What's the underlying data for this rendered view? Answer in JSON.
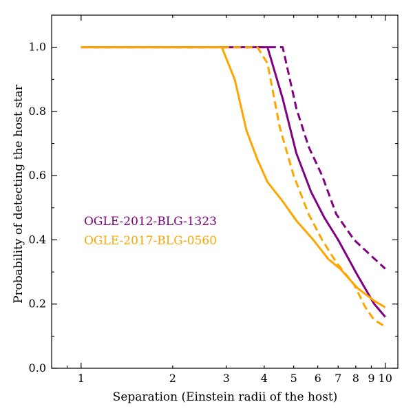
{
  "chart_data": {
    "type": "line",
    "title": "",
    "xlabel": "Separation (Einstein radii of the host)",
    "ylabel": "Probability of detecting the host star",
    "xscale": "log",
    "xlim": [
      0.8,
      11
    ],
    "ylim": [
      0.0,
      1.1
    ],
    "xticks": [
      1,
      2,
      3,
      4,
      5,
      6,
      7,
      8,
      9,
      10
    ],
    "xtick_labels": [
      "1",
      "2",
      "3",
      "4",
      "5",
      "6",
      "7",
      "8",
      "9",
      "10"
    ],
    "yticks": [
      0.0,
      0.2,
      0.4,
      0.6,
      0.8,
      1.0
    ],
    "ytick_labels": [
      "0.0",
      "0.2",
      "0.4",
      "0.6",
      "0.8",
      "1.0"
    ],
    "grid": false,
    "legend_placement": "middle-left",
    "series": [
      {
        "name": "OGLE-2012-BLG-1323",
        "style": "solid",
        "color": "#800080",
        "x": [
          1,
          2,
          3,
          3.5,
          4.1,
          4.6,
          5.1,
          5.7,
          6.3,
          7,
          8.1,
          9.2,
          10
        ],
        "y": [
          1.0,
          1.0,
          1.0,
          1.0,
          1.0,
          0.84,
          0.67,
          0.55,
          0.47,
          0.4,
          0.29,
          0.2,
          0.16
        ]
      },
      {
        "name": "OGLE-2012-BLG-1323",
        "style": "dashed",
        "color": "#800080",
        "x": [
          1,
          2,
          3,
          4,
          4.6,
          5.1,
          5.6,
          6.2,
          6.9,
          7.9,
          9,
          10
        ],
        "y": [
          1.0,
          1.0,
          1.0,
          1.0,
          1.0,
          0.81,
          0.69,
          0.6,
          0.48,
          0.4,
          0.35,
          0.31
        ]
      },
      {
        "name": "OGLE-2017-BLG-0560",
        "style": "solid",
        "color": "#FFA500",
        "x": [
          1,
          2,
          2.9,
          3.2,
          3.5,
          3.8,
          4.1,
          4.6,
          5.1,
          5.8,
          6.5,
          7.1,
          8.1,
          9.2,
          10
        ],
        "y": [
          1.0,
          1.0,
          1.0,
          0.9,
          0.74,
          0.65,
          0.58,
          0.52,
          0.46,
          0.4,
          0.34,
          0.31,
          0.25,
          0.21,
          0.19
        ]
      },
      {
        "name": "OGLE-2017-BLG-0560",
        "style": "dashed",
        "color": "#FFA500",
        "x": [
          1,
          2,
          3,
          3.8,
          4.1,
          4.5,
          5,
          5.6,
          6.2,
          6.9,
          7.9,
          8.6,
          9.2,
          10
        ],
        "y": [
          1.0,
          1.0,
          1.0,
          1.0,
          0.95,
          0.75,
          0.6,
          0.48,
          0.4,
          0.33,
          0.26,
          0.19,
          0.15,
          0.13
        ]
      }
    ],
    "legend": [
      {
        "label": "OGLE-2012-BLG-1323",
        "color": "#800080"
      },
      {
        "label": "OGLE-2017-BLG-0560",
        "color": "#FFA500"
      }
    ]
  }
}
